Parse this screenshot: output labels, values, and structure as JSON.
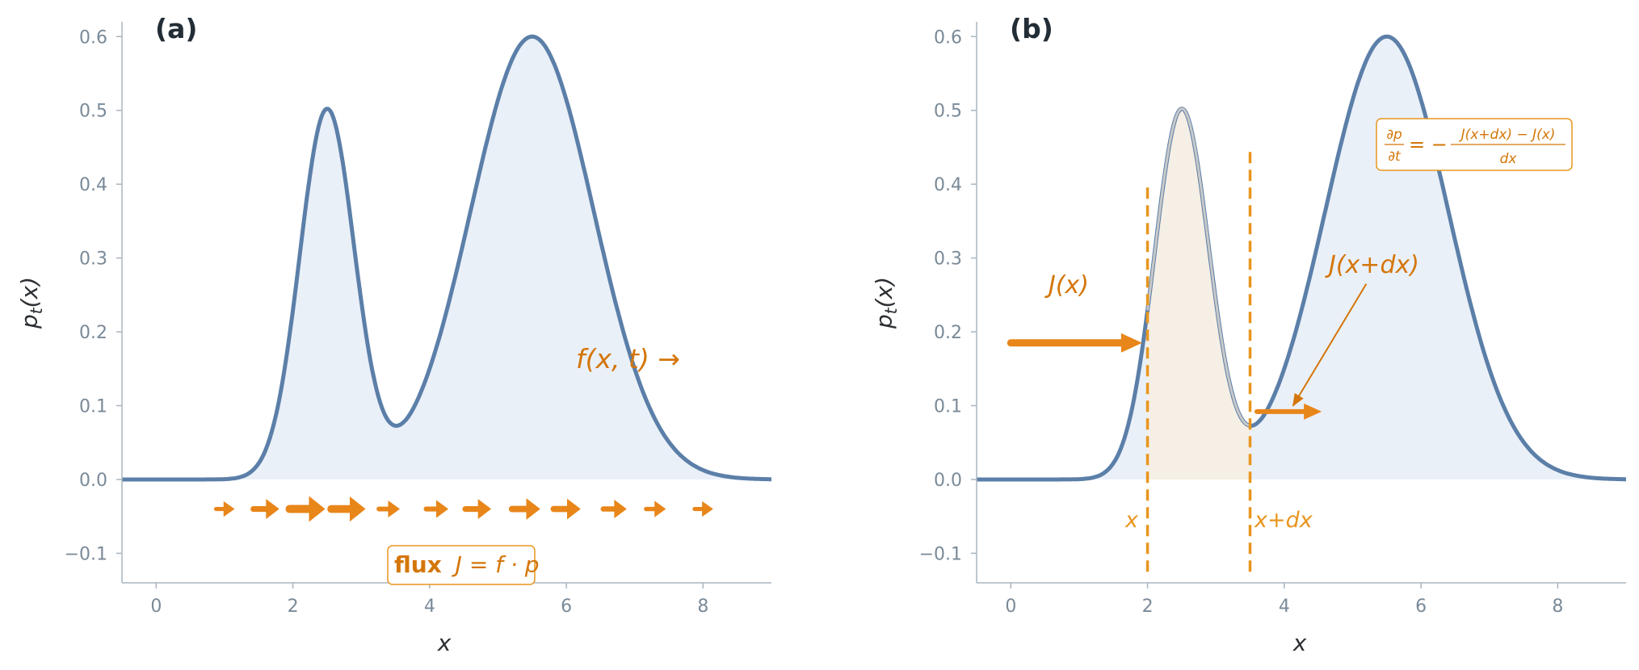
{
  "colors": {
    "curve": "#5b7fa8",
    "fill": "#eaf0f8",
    "orange": "#e8861a",
    "orange_dark": "#d4760a",
    "band_fill": "#f5efe5",
    "axis": "#a9b5c0",
    "tick_text": "#7a8a98"
  },
  "chart_data": [
    {
      "type": "area",
      "panel_label": "(a)",
      "xlabel": "x",
      "ylabel": "p_t(x)",
      "xlim": [
        -0.5,
        9
      ],
      "ylim": [
        -0.14,
        0.62
      ],
      "x_ticks": [
        0,
        2,
        4,
        6,
        8
      ],
      "y_ticks": [
        -0.1,
        0.0,
        0.1,
        0.2,
        0.3,
        0.4,
        0.5,
        0.6
      ],
      "density": {
        "components": [
          {
            "weight": 0.5,
            "mean": 2.5,
            "std": 0.4
          },
          {
            "weight": 0.6,
            "mean": 5.5,
            "std": 0.9
          }
        ]
      },
      "flux_arrows": {
        "y": -0.04,
        "x": [
          1.0,
          1.6,
          2.2,
          2.8,
          3.4,
          4.1,
          4.7,
          5.4,
          6.0,
          6.7,
          7.3,
          8.0
        ],
        "strength": [
          0.3,
          0.6,
          1.0,
          0.95,
          0.4,
          0.45,
          0.6,
          0.7,
          0.65,
          0.5,
          0.35,
          0.3
        ]
      },
      "annotations": {
        "velocity": "f(x, t) →",
        "flux_bold": "flux",
        "flux_formula": "J = f · p"
      }
    },
    {
      "type": "area",
      "panel_label": "(b)",
      "xlabel": "x",
      "ylabel": "p_t(x)",
      "xlim": [
        -0.5,
        9
      ],
      "ylim": [
        -0.14,
        0.62
      ],
      "x_ticks": [
        0,
        2,
        4,
        6,
        8
      ],
      "y_ticks": [
        -0.1,
        0.0,
        0.1,
        0.2,
        0.3,
        0.4,
        0.5,
        0.6
      ],
      "density": {
        "components": [
          {
            "weight": 0.5,
            "mean": 2.5,
            "std": 0.4
          },
          {
            "weight": 0.6,
            "mean": 5.5,
            "std": 0.9
          }
        ]
      },
      "band": {
        "x_left": 2.0,
        "x_right": 3.5
      },
      "dashed_lines": [
        {
          "x": 2.0,
          "y_top": 0.4,
          "label": "x"
        },
        {
          "x": 3.5,
          "y_top": 0.45,
          "label": "x+dx"
        }
      ],
      "flux_in": {
        "label": "J(x)",
        "x_from": 0.0,
        "x_to": 1.85,
        "y": 0.185
      },
      "flux_out": {
        "label": "J(x+dx)",
        "x_from": 3.6,
        "x_to": 4.5,
        "y": 0.092
      },
      "equation": {
        "lhs_num": "∂p",
        "lhs_den": "∂t",
        "equals": "= −",
        "rhs_num": "J(x+dx) − J(x)",
        "rhs_den": "dx"
      }
    }
  ]
}
